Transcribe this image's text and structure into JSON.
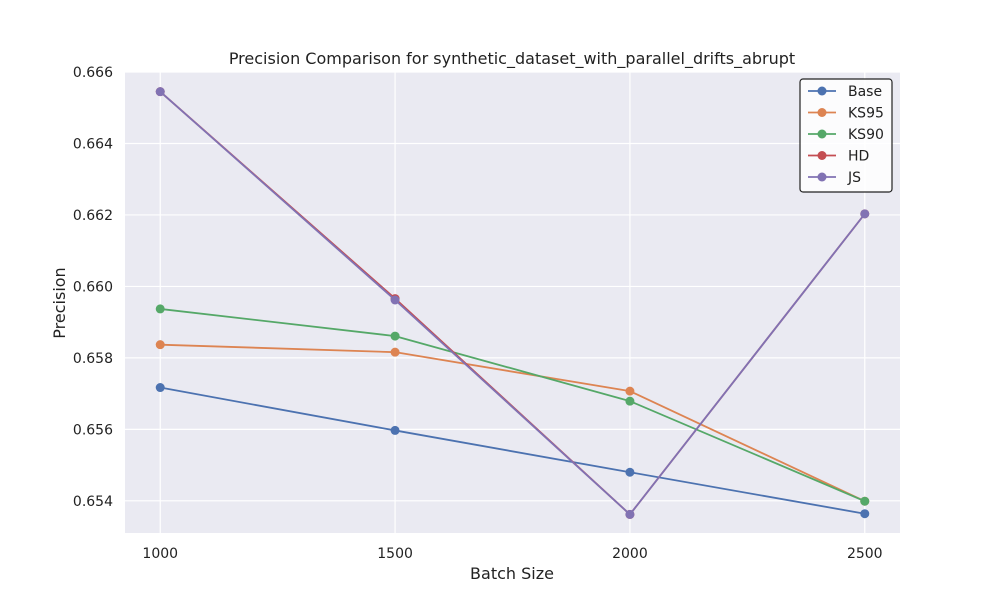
{
  "chart_data": {
    "type": "line",
    "title": "Precision Comparison for synthetic_dataset_with_parallel_drifts_abrupt",
    "xlabel": "Batch Size",
    "ylabel": "Precision",
    "x": [
      1000,
      1500,
      2000,
      2500
    ],
    "xlim": [
      925,
      2575
    ],
    "ylim": [
      0.6531,
      0.666
    ],
    "yticks": [
      0.654,
      0.656,
      0.658,
      0.66,
      0.662,
      0.664,
      0.666
    ],
    "ytick_labels": [
      "0.654",
      "0.656",
      "0.658",
      "0.660",
      "0.662",
      "0.664",
      "0.666"
    ],
    "xtick_labels": [
      "1000",
      "1500",
      "2000",
      "2500"
    ],
    "grid": true,
    "legend_position": "top-right",
    "series": [
      {
        "name": "Base",
        "color": "#4c72b0",
        "values": [
          0.65717,
          0.65597,
          0.6548,
          0.65364
        ]
      },
      {
        "name": "KS95",
        "color": "#dd8452",
        "values": [
          0.65837,
          0.65816,
          0.65707,
          0.65399
        ]
      },
      {
        "name": "KS90",
        "color": "#55a868",
        "values": [
          0.65937,
          0.65861,
          0.65679,
          0.65399
        ]
      },
      {
        "name": "HD",
        "color": "#c44e52",
        "values": [
          0.66545,
          0.65966,
          0.65362,
          0.66203
        ]
      },
      {
        "name": "JS",
        "color": "#8172b3",
        "values": [
          0.66545,
          0.65962,
          0.65362,
          0.66203
        ]
      }
    ]
  }
}
